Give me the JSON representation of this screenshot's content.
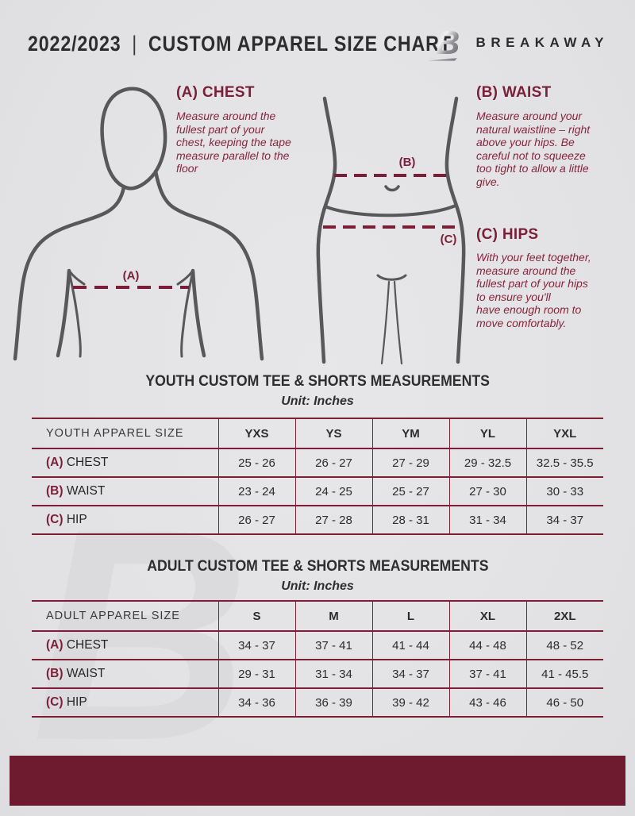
{
  "header": {
    "season": "2022/2023",
    "divider": "|",
    "title": "CUSTOM APPAREL SIZE CHART",
    "brand": "BREAKAWAY",
    "logo_letter": "B"
  },
  "watermark_letter": "B",
  "measurements": [
    {
      "id": "A",
      "label": "(A) CHEST",
      "description": "Measure around the fullest part of your chest, keeping the tape measure parallel to the floor"
    },
    {
      "id": "B",
      "label": "(B) WAIST",
      "description": "Measure around your natural waistline – right above your hips. Be careful not to squeeze too tight to allow a little give."
    },
    {
      "id": "C",
      "label": "(C) HIPS",
      "description": "With your feet together, measure around the fullest part of your hips to ensure you'll\nhave enough room to move comfortably."
    }
  ],
  "figures": {
    "chest_marker": "(A)",
    "waist_marker": "(B)",
    "hips_marker": "(C)"
  },
  "youth_table": {
    "title": "YOUTH CUSTOM TEE & SHORTS MEASUREMENTS",
    "unit": "Unit: Inches",
    "header_label": "YOUTH APPAREL SIZE",
    "sizes": [
      "YXS",
      "YS",
      "YM",
      "YL",
      "YXL"
    ],
    "rows": [
      {
        "marker": "(A)",
        "label": "CHEST",
        "values": [
          "25 - 26",
          "26 - 27",
          "27 - 29",
          "29 - 32.5",
          "32.5 - 35.5"
        ]
      },
      {
        "marker": "(B)",
        "label": "WAIST",
        "values": [
          "23 - 24",
          "24 - 25",
          "25 - 27",
          "27 - 30",
          "30 - 33"
        ]
      },
      {
        "marker": "(C)",
        "label": "HIP",
        "values": [
          "26 - 27",
          "27 - 28",
          "28 - 31",
          "31 - 34",
          "34 - 37"
        ]
      }
    ]
  },
  "adult_table": {
    "title": "ADULT CUSTOM TEE & SHORTS MEASUREMENTS",
    "unit": "Unit: Inches",
    "header_label": "ADULT APPAREL SIZE",
    "sizes": [
      "S",
      "M",
      "L",
      "XL",
      "2XL"
    ],
    "rows": [
      {
        "marker": "(A)",
        "label": "CHEST",
        "values": [
          "34 - 37",
          "37 - 41",
          "41 - 44",
          "44 - 48",
          "48 - 52"
        ]
      },
      {
        "marker": "(B)",
        "label": "WAIST",
        "values": [
          "29 - 31",
          "31 - 34",
          "34 - 37",
          "37 - 41",
          "41 - 45.5"
        ]
      },
      {
        "marker": "(C)",
        "label": "HIP",
        "values": [
          "34 - 36",
          "36 - 39",
          "39 - 42",
          "43 - 46",
          "46 - 50"
        ]
      }
    ]
  },
  "colors": {
    "accent_maroon": "#7B1F38",
    "table_border": "#7B2036",
    "footer_bar": "#6E1B30",
    "figure_stroke": "#58585A",
    "text_dark": "#2D2D2F",
    "background": "#E3E3E5"
  }
}
